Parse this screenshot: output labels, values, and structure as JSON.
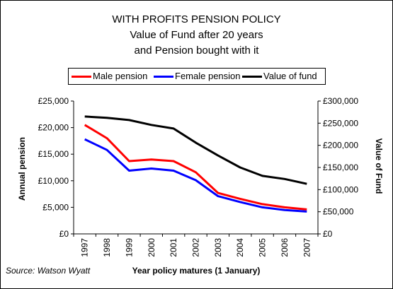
{
  "chart_data": {
    "type": "line",
    "title": "WITH PROFITS PENSION POLICY",
    "subtitle_lines": [
      "Value of Fund after 20 years",
      "and Pension bought with it"
    ],
    "xlabel": "Year policy matures (1 January)",
    "ylabel_left": "Annual pension",
    "ylabel_right": "Value of Fund",
    "categories": [
      "1997",
      "1998",
      "1999",
      "2000",
      "2001",
      "2002",
      "2003",
      "2004",
      "2005",
      "2006",
      "2007"
    ],
    "ylim_left": [
      0,
      25000
    ],
    "ylim_right": [
      0,
      300000
    ],
    "y_ticks_left": [
      "£0",
      "£5,000",
      "£10,000",
      "£15,000",
      "£20,000",
      "£25,000"
    ],
    "y_ticks_right": [
      "£0",
      "£50,000",
      "£100,000",
      "£150,000",
      "£200,000",
      "£250,000",
      "£300,000"
    ],
    "legend_position": "top",
    "grid": false,
    "series": [
      {
        "name": "Male pension",
        "axis": "left",
        "color": "#ff0000",
        "values": [
          20500,
          18000,
          13700,
          14000,
          13700,
          11600,
          7700,
          6600,
          5600,
          5000,
          4600
        ]
      },
      {
        "name": "Female pension",
        "axis": "left",
        "color": "#0000ff",
        "values": [
          17800,
          15800,
          11900,
          12300,
          11900,
          10100,
          7100,
          6000,
          5000,
          4500,
          4200
        ]
      },
      {
        "name": "Value of fund",
        "axis": "right",
        "color": "#000000",
        "values": [
          265000,
          262000,
          257000,
          246000,
          238000,
          206000,
          177000,
          150000,
          131000,
          124000,
          113000
        ]
      }
    ],
    "source": "Source: Watson Wyatt"
  }
}
